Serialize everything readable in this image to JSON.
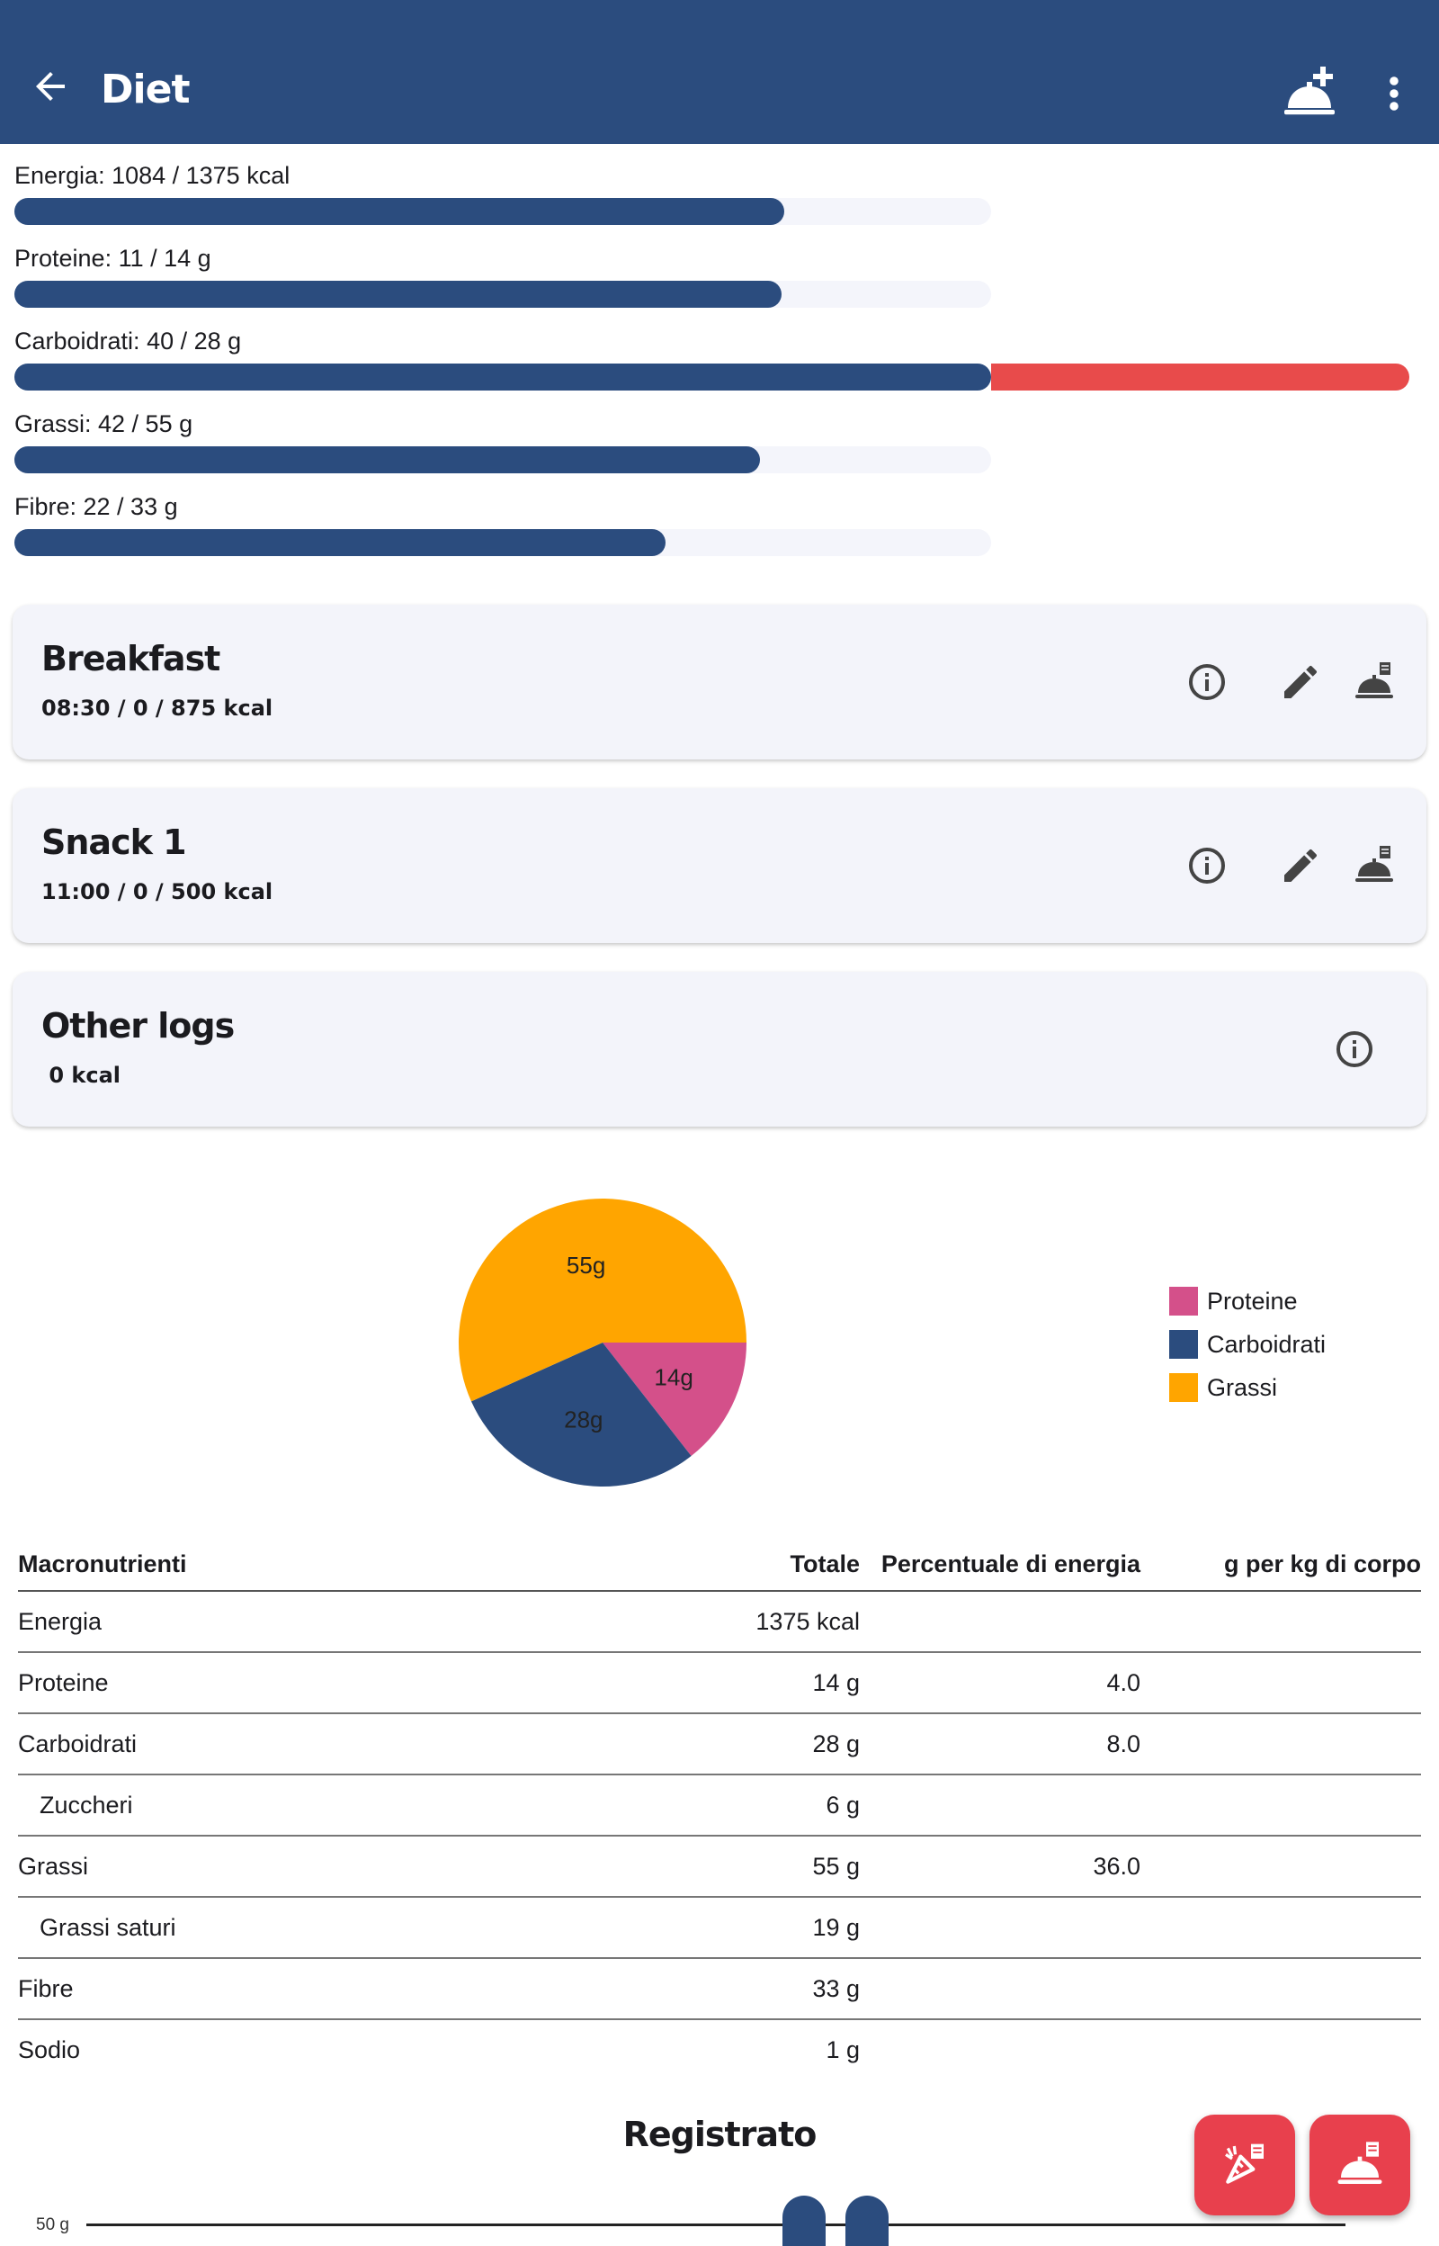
{
  "appbar": {
    "title": "Diet",
    "back_icon": "arrow-left-icon",
    "add_icon": "add-meal-icon",
    "more_icon": "more-vert-icon"
  },
  "macros": [
    {
      "label": "Energia: 1084 / 1375 kcal",
      "value": 1084,
      "target": 1375
    },
    {
      "label": "Proteine: 11 / 14 g",
      "value": 11,
      "target": 14
    },
    {
      "label": "Carboidrati: 40 / 28 g",
      "value": 40,
      "target": 28
    },
    {
      "label": "Grassi: 42 / 55 g",
      "value": 42,
      "target": 55
    },
    {
      "label": "Fibre: 22 / 33 g",
      "value": 22,
      "target": 33
    }
  ],
  "meals": [
    {
      "title": "Breakfast",
      "subtitle": "08:30 /  0 / 875 kcal"
    },
    {
      "title": "Snack 1",
      "subtitle": "11:00 /  0 / 500 kcal"
    },
    {
      "title": "Other logs",
      "subtitle": " 0 kcal"
    }
  ],
  "chart_data": {
    "type": "pie",
    "slices": [
      {
        "name": "Proteine",
        "value": 14,
        "label": "14g",
        "color": "#d4508a"
      },
      {
        "name": "Carboidrati",
        "value": 28,
        "label": "28g",
        "color": "#2b4c7e"
      },
      {
        "name": "Grassi",
        "value": 55,
        "label": "55g",
        "color": "#ffa500"
      }
    ],
    "legend_position": "right"
  },
  "table": {
    "headers": [
      "Macronutrienti",
      "Totale",
      "Percentuale di energia",
      "g per kg di corpo"
    ],
    "rows": [
      {
        "name": "Energia",
        "total": "1375 kcal",
        "percent": "",
        "perkg": ""
      },
      {
        "name": "Proteine",
        "total": "14 g",
        "percent": "4.0",
        "perkg": ""
      },
      {
        "name": "Carboidrati",
        "total": "28 g",
        "percent": "8.0",
        "perkg": ""
      },
      {
        "name": "Zuccheri",
        "total": "6 g",
        "percent": "",
        "perkg": ""
      },
      {
        "name": "Grassi",
        "total": "55 g",
        "percent": "36.0",
        "perkg": ""
      },
      {
        "name": "Grassi saturi",
        "total": "19 g",
        "percent": "",
        "perkg": ""
      },
      {
        "name": "Fibre",
        "total": "33 g",
        "percent": "",
        "perkg": ""
      },
      {
        "name": "Sodio",
        "total": "1 g",
        "percent": "",
        "perkg": ""
      }
    ]
  },
  "logged": {
    "title": "Registrato",
    "axis_label": "50 g"
  },
  "fabs": {
    "ingredient_icon": "add-ingredient-icon",
    "meal_icon": "add-meal-icon"
  }
}
